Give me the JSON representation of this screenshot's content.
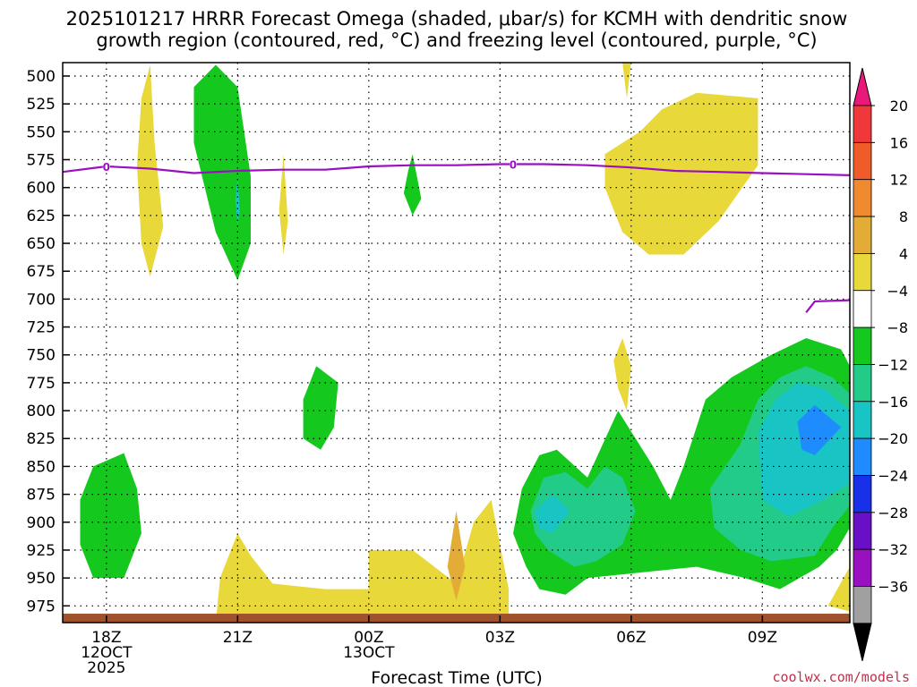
{
  "chart_data": {
    "type": "contour-heatmap",
    "title_lines": [
      "2025101217 HRRR Forecast Omega (shaded, μbar/s) for KCMH with dendritic snow",
      "growth region (contoured, red, °C) and freezing level (contoured, purple, °C)"
    ],
    "xlabel": "Forecast Time (UTC)",
    "x_tick_labels": [
      {
        "hour": 18,
        "lines": [
          "18Z",
          "12OCT",
          "2025"
        ]
      },
      {
        "hour": 21,
        "lines": [
          "21Z"
        ]
      },
      {
        "hour": 24,
        "lines": [
          "00Z",
          "13OCT"
        ]
      },
      {
        "hour": 27,
        "lines": [
          "03Z"
        ]
      },
      {
        "hour": 30,
        "lines": [
          "06Z"
        ]
      },
      {
        "hour": 33,
        "lines": [
          "09Z"
        ]
      }
    ],
    "x_range_hours": [
      17,
      35
    ],
    "y_range_hpa": [
      488,
      990
    ],
    "pressure_levels": [
      500,
      525,
      550,
      575,
      600,
      625,
      650,
      675,
      700,
      725,
      750,
      775,
      800,
      825,
      850,
      875,
      900,
      925,
      950,
      975
    ],
    "colorbar": {
      "labels": [
        "20",
        "16",
        "12",
        "8",
        "4",
        "−4",
        "−8",
        "−12",
        "−16",
        "−20",
        "−24",
        "−28",
        "−32",
        "−36"
      ],
      "colors": [
        "#e8197a",
        "#f0383a",
        "#ef5c2a",
        "#ef8a30",
        "#e2ac36",
        "#e8d83a",
        "#ffffff",
        "#14c81e",
        "#22cc88",
        "#18c4c4",
        "#1e8cff",
        "#1830e8",
        "#6a0fc8",
        "#9a10c0",
        "#a0a0a0",
        "#000000"
      ]
    },
    "freezing_level_label": "0",
    "freezing_level_hpa": [
      [
        17.0,
        586
      ],
      [
        18.0,
        581
      ],
      [
        19.0,
        583
      ],
      [
        20.0,
        587
      ],
      [
        21.0,
        585
      ],
      [
        22.0,
        584
      ],
      [
        23.0,
        584
      ],
      [
        24.0,
        581
      ],
      [
        25.0,
        580
      ],
      [
        26.0,
        580
      ],
      [
        27.0,
        579
      ],
      [
        28.0,
        579
      ],
      [
        29.0,
        580
      ],
      [
        30.0,
        582
      ],
      [
        31.0,
        585
      ],
      [
        32.0,
        586
      ],
      [
        33.0,
        587
      ],
      [
        34.0,
        588
      ],
      [
        35.0,
        589
      ]
    ],
    "freezing_level_lower_hpa": [
      [
        34.0,
        712
      ],
      [
        34.2,
        702
      ],
      [
        35.0,
        701
      ]
    ],
    "omega_regions": [
      {
        "level": "4",
        "color": "#e8d83a",
        "points": [
          [
            19.0,
            490
          ],
          [
            19.1,
            560
          ],
          [
            19.3,
            635
          ],
          [
            19.0,
            680
          ],
          [
            18.8,
            650
          ],
          [
            18.7,
            580
          ],
          [
            18.8,
            520
          ]
        ]
      },
      {
        "level": "-4",
        "color": "#14c81e",
        "points": [
          [
            21.0,
            510
          ],
          [
            21.3,
            590
          ],
          [
            21.3,
            650
          ],
          [
            21.0,
            683
          ],
          [
            20.5,
            640
          ],
          [
            20.0,
            560
          ],
          [
            20.0,
            510
          ],
          [
            20.5,
            490
          ]
        ]
      },
      {
        "level": "-8",
        "color": "#18c4c4",
        "points": [
          [
            21.0,
            590
          ],
          [
            21.05,
            620
          ],
          [
            21.0,
            635
          ],
          [
            20.95,
            610
          ]
        ]
      },
      {
        "level": "4",
        "color": "#e8d83a",
        "points": [
          [
            22.05,
            570
          ],
          [
            22.15,
            630
          ],
          [
            22.05,
            660
          ],
          [
            21.95,
            620
          ]
        ]
      },
      {
        "level": "-4",
        "color": "#14c81e",
        "points": [
          [
            25.0,
            570
          ],
          [
            25.2,
            610
          ],
          [
            25.0,
            625
          ],
          [
            24.8,
            605
          ],
          [
            24.9,
            585
          ]
        ]
      },
      {
        "level": "4",
        "color": "#e8d83a",
        "points": [
          [
            29.8,
            488
          ],
          [
            29.9,
            520
          ],
          [
            30.0,
            488
          ]
        ]
      },
      {
        "level": "4",
        "color": "#e8d83a",
        "points": [
          [
            29.4,
            570
          ],
          [
            30.2,
            550
          ],
          [
            30.7,
            530
          ],
          [
            31.5,
            515
          ],
          [
            32.9,
            520
          ],
          [
            32.9,
            580
          ],
          [
            32.0,
            630
          ],
          [
            31.2,
            660
          ],
          [
            30.4,
            660
          ],
          [
            29.8,
            640
          ],
          [
            29.4,
            600
          ]
        ]
      },
      {
        "level": "-4",
        "color": "#14c81e",
        "points": [
          [
            22.8,
            760
          ],
          [
            23.3,
            775
          ],
          [
            23.2,
            815
          ],
          [
            22.9,
            835
          ],
          [
            22.5,
            825
          ],
          [
            22.5,
            790
          ]
        ]
      },
      {
        "level": "4",
        "color": "#e8d83a",
        "points": [
          [
            29.8,
            735
          ],
          [
            30.0,
            760
          ],
          [
            29.9,
            800
          ],
          [
            29.7,
            780
          ],
          [
            29.6,
            755
          ]
        ]
      },
      {
        "level": "-4",
        "color": "#14c81e",
        "points": [
          [
            17.7,
            850
          ],
          [
            18.4,
            838
          ],
          [
            18.7,
            870
          ],
          [
            18.8,
            910
          ],
          [
            18.4,
            950
          ],
          [
            17.7,
            950
          ],
          [
            17.4,
            920
          ],
          [
            17.4,
            880
          ]
        ]
      },
      {
        "level": "4",
        "color": "#e8d83a",
        "points": [
          [
            21.0,
            910
          ],
          [
            21.3,
            930
          ],
          [
            21.8,
            955
          ],
          [
            23.0,
            960
          ],
          [
            24.0,
            960
          ],
          [
            24.0,
            925
          ],
          [
            25.0,
            925
          ],
          [
            26.0,
            955
          ],
          [
            26.4,
            900
          ],
          [
            26.8,
            880
          ],
          [
            27.0,
            920
          ],
          [
            27.2,
            960
          ],
          [
            27.2,
            990
          ],
          [
            20.5,
            990
          ],
          [
            20.6,
            950
          ]
        ]
      },
      {
        "level": "8",
        "color": "#e2ac36",
        "points": [
          [
            26.0,
            890
          ],
          [
            26.2,
            940
          ],
          [
            26.0,
            970
          ],
          [
            25.8,
            940
          ]
        ]
      },
      {
        "level": "-4",
        "color": "#14c81e",
        "points": [
          [
            27.3,
            910
          ],
          [
            27.5,
            870
          ],
          [
            27.9,
            840
          ],
          [
            28.3,
            835
          ],
          [
            29.0,
            860
          ],
          [
            29.7,
            800
          ],
          [
            30.5,
            850
          ],
          [
            30.9,
            880
          ],
          [
            31.2,
            850
          ],
          [
            31.7,
            790
          ],
          [
            32.3,
            770
          ],
          [
            33.2,
            750
          ],
          [
            34.0,
            735
          ],
          [
            34.8,
            745
          ],
          [
            35.0,
            760
          ],
          [
            35.0,
            905
          ],
          [
            34.7,
            925
          ],
          [
            34.3,
            940
          ],
          [
            33.4,
            960
          ],
          [
            32.6,
            950
          ],
          [
            31.5,
            940
          ],
          [
            29.0,
            950
          ],
          [
            28.5,
            965
          ],
          [
            27.9,
            960
          ],
          [
            27.6,
            940
          ]
        ]
      },
      {
        "level": "-8",
        "color": "#22cc88",
        "points": [
          [
            27.7,
            890
          ],
          [
            28.0,
            860
          ],
          [
            28.5,
            855
          ],
          [
            29.0,
            870
          ],
          [
            29.4,
            850
          ],
          [
            29.8,
            860
          ],
          [
            30.1,
            890
          ],
          [
            29.8,
            920
          ],
          [
            29.2,
            935
          ],
          [
            28.7,
            940
          ],
          [
            28.1,
            925
          ],
          [
            27.8,
            910
          ]
        ]
      },
      {
        "level": "-8",
        "color": "#22cc88",
        "points": [
          [
            31.8,
            870
          ],
          [
            32.5,
            830
          ],
          [
            32.9,
            790
          ],
          [
            33.4,
            770
          ],
          [
            34.0,
            760
          ],
          [
            34.6,
            770
          ],
          [
            35.0,
            785
          ],
          [
            35.0,
            885
          ],
          [
            34.6,
            905
          ],
          [
            34.2,
            930
          ],
          [
            33.2,
            935
          ],
          [
            32.5,
            925
          ],
          [
            31.9,
            905
          ]
        ]
      },
      {
        "level": "-12",
        "color": "#18c4c4",
        "points": [
          [
            27.8,
            890
          ],
          [
            28.2,
            875
          ],
          [
            28.6,
            890
          ],
          [
            28.2,
            910
          ],
          [
            27.9,
            905
          ]
        ]
      },
      {
        "level": "-12",
        "color": "#18c4c4",
        "points": [
          [
            32.9,
            820
          ],
          [
            33.3,
            790
          ],
          [
            33.8,
            775
          ],
          [
            34.4,
            780
          ],
          [
            35.0,
            800
          ],
          [
            35.0,
            865
          ],
          [
            34.4,
            880
          ],
          [
            33.6,
            895
          ],
          [
            33.0,
            880
          ]
        ]
      },
      {
        "level": "-16",
        "color": "#1e8cff",
        "points": [
          [
            33.8,
            810
          ],
          [
            34.2,
            795
          ],
          [
            34.8,
            815
          ],
          [
            34.2,
            840
          ],
          [
            33.9,
            835
          ]
        ]
      },
      {
        "level": "4",
        "color": "#e8d83a",
        "points": [
          [
            34.5,
            975
          ],
          [
            35.0,
            940
          ],
          [
            35.0,
            980
          ]
        ]
      }
    ],
    "surface_terrain_hpa": 982,
    "credit": "coolwx.com/models"
  }
}
